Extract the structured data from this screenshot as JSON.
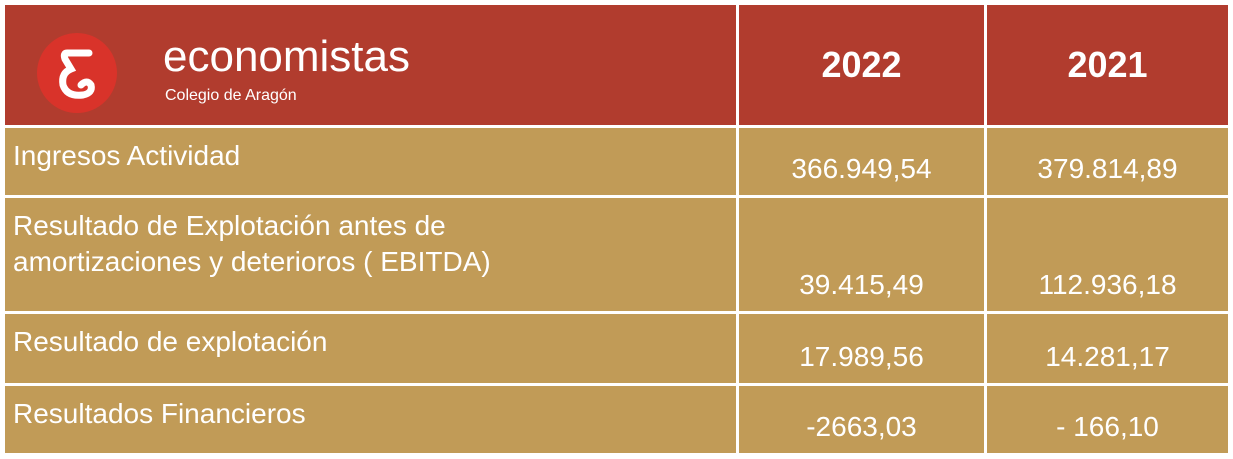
{
  "header": {
    "logo_title": "economistas",
    "logo_subtitle": "Colegio de Aragón",
    "columns": [
      "2022",
      "2021"
    ]
  },
  "table": {
    "rows": [
      [
        "Ingresos Actividad",
        "366.949,54",
        "379.814,89"
      ],
      [
        "Resultado de Explotación antes de amortizaciones y deterioros ( EBITDA)",
        "39.415,49",
        "112.936,18"
      ],
      [
        "Resultado de explotación",
        "17.989,56",
        "14.281,17"
      ],
      [
        "Resultados Financieros",
        "-2663,03",
        "- 166,10"
      ]
    ]
  }
}
